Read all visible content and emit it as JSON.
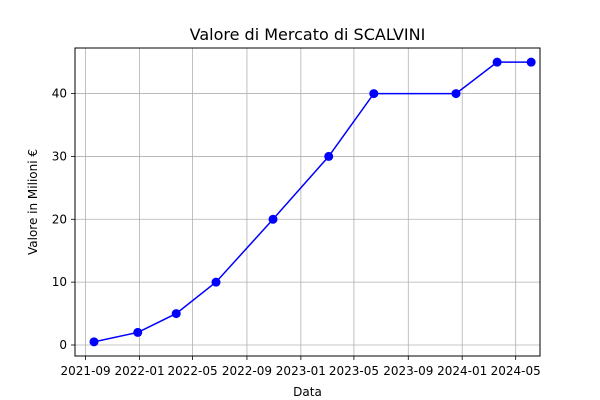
{
  "chart_data": {
    "type": "line",
    "title": "Valore di Mercato di SCALVINI",
    "xlabel": "Data",
    "ylabel": "Valore in Milioni €",
    "grid": true,
    "color": "#0000ff",
    "xlim": [
      "2021-08-08",
      "2024-06-25"
    ],
    "ylim": [
      -1.75,
      47.25
    ],
    "x_ticks": [
      {
        "date": "2021-09-01",
        "label": "2021-09"
      },
      {
        "date": "2022-01-01",
        "label": "2022-01"
      },
      {
        "date": "2022-05-01",
        "label": "2022-05"
      },
      {
        "date": "2022-09-01",
        "label": "2022-09"
      },
      {
        "date": "2023-01-01",
        "label": "2023-01"
      },
      {
        "date": "2023-05-01",
        "label": "2023-05"
      },
      {
        "date": "2023-09-01",
        "label": "2023-09"
      },
      {
        "date": "2024-01-01",
        "label": "2024-01"
      },
      {
        "date": "2024-05-01",
        "label": "2024-05"
      }
    ],
    "y_ticks": [
      0,
      10,
      20,
      30,
      40
    ],
    "series": [
      {
        "x": [
          "2021-09-20",
          "2021-12-28",
          "2022-03-25",
          "2022-06-23",
          "2022-10-30",
          "2023-03-05",
          "2023-06-15",
          "2023-12-18",
          "2024-03-20",
          "2024-06-05"
        ],
        "y": [
          0.5,
          2,
          5,
          10,
          20,
          30,
          40,
          40,
          45,
          45
        ]
      }
    ]
  }
}
